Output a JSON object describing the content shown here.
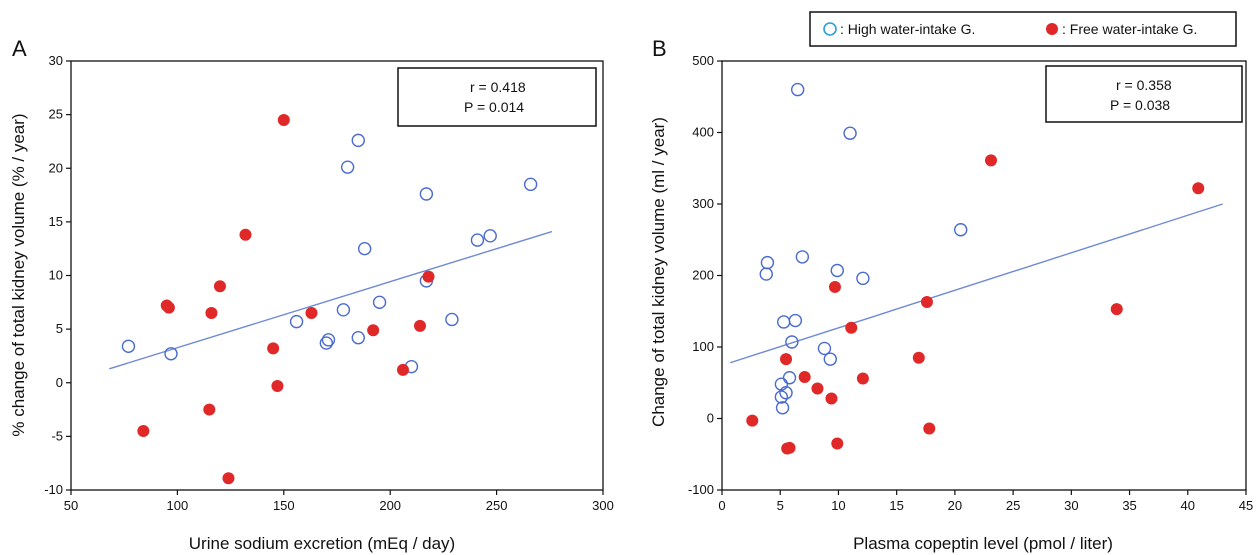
{
  "legend": {
    "items": [
      {
        "marker": "open",
        "label": ": High water-intake G."
      },
      {
        "marker": "filled",
        "label": ": Free water-intake G."
      }
    ]
  },
  "colors": {
    "high_group": "#4a6bd0",
    "free_group": "#e02828",
    "trendline": "#6f8ad6",
    "axis": "#111111"
  },
  "chart_data": [
    {
      "type": "scatter",
      "panel_label": "A",
      "xlabel": "Urine sodium excretion (mEq / day)",
      "ylabel": "% change of total kidney volume (% / year)",
      "xlim": [
        50,
        300
      ],
      "ylim": [
        -10,
        30
      ],
      "xticks": [
        50,
        100,
        150,
        200,
        250,
        300
      ],
      "yticks": [
        -10,
        -5,
        0,
        5,
        10,
        15,
        20,
        25,
        30
      ],
      "stats": {
        "r": "r = 0.418",
        "p": "P = 0.014"
      },
      "trendline": {
        "x": [
          68,
          276
        ],
        "y": [
          1.3,
          14.1
        ]
      },
      "series": [
        {
          "name": ": High water-intake G.",
          "marker": "open",
          "points": [
            [
              77,
              3.4
            ],
            [
              97,
              2.7
            ],
            [
              156,
              5.7
            ],
            [
              170,
              3.7
            ],
            [
              171,
              4.0
            ],
            [
              178,
              6.8
            ],
            [
              180,
              20.1
            ],
            [
              185,
              22.6
            ],
            [
              185,
              4.2
            ],
            [
              188,
              12.5
            ],
            [
              195,
              7.5
            ],
            [
              210,
              1.5
            ],
            [
              217,
              17.6
            ],
            [
              217,
              9.5
            ],
            [
              229,
              5.9
            ],
            [
              241,
              13.3
            ],
            [
              247,
              13.7
            ],
            [
              266,
              18.5
            ]
          ]
        },
        {
          "name": ": Free water-intake G.",
          "marker": "filled",
          "points": [
            [
              84,
              -4.5
            ],
            [
              95,
              7.2
            ],
            [
              96,
              7.0
            ],
            [
              115,
              -2.5
            ],
            [
              116,
              6.5
            ],
            [
              120,
              9.0
            ],
            [
              124,
              -8.9
            ],
            [
              132,
              13.8
            ],
            [
              145,
              3.2
            ],
            [
              147,
              -0.3
            ],
            [
              150,
              24.5
            ],
            [
              163,
              6.5
            ],
            [
              192,
              4.9
            ],
            [
              206,
              1.2
            ],
            [
              214,
              5.3
            ],
            [
              218,
              9.9
            ]
          ]
        }
      ]
    },
    {
      "type": "scatter",
      "panel_label": "B",
      "xlabel": "Plasma copeptin level (pmol / liter)",
      "ylabel": "Change of total kidney volume (ml / year)",
      "xlim": [
        0,
        45
      ],
      "ylim": [
        -100,
        500
      ],
      "xticks": [
        0,
        5,
        10,
        15,
        20,
        25,
        30,
        35,
        40,
        45
      ],
      "yticks": [
        -100,
        0,
        100,
        200,
        300,
        400,
        500
      ],
      "stats": {
        "r": "r = 0.358",
        "p": "P = 0.038"
      },
      "trendline": {
        "x": [
          0.7,
          43
        ],
        "y": [
          78,
          300
        ]
      },
      "series": [
        {
          "name": ": High water-intake G.",
          "marker": "open",
          "points": [
            [
              3.8,
              202
            ],
            [
              3.9,
              218
            ],
            [
              5.1,
              48
            ],
            [
              5.1,
              30
            ],
            [
              5.2,
              15
            ],
            [
              5.3,
              135
            ],
            [
              5.5,
              36
            ],
            [
              5.8,
              57
            ],
            [
              6.0,
              107
            ],
            [
              6.3,
              137
            ],
            [
              6.5,
              460
            ],
            [
              6.9,
              226
            ],
            [
              8.8,
              98
            ],
            [
              9.3,
              83
            ],
            [
              9.9,
              207
            ],
            [
              11.0,
              399
            ],
            [
              12.1,
              196
            ],
            [
              20.5,
              264
            ]
          ]
        },
        {
          "name": ": Free water-intake G.",
          "marker": "filled",
          "points": [
            [
              2.6,
              -3
            ],
            [
              5.5,
              83
            ],
            [
              5.6,
              -42
            ],
            [
              5.8,
              -41
            ],
            [
              7.1,
              58
            ],
            [
              8.2,
              42
            ],
            [
              9.4,
              28
            ],
            [
              9.7,
              184
            ],
            [
              9.9,
              -35
            ],
            [
              11.1,
              127
            ],
            [
              12.1,
              56
            ],
            [
              16.9,
              85
            ],
            [
              17.6,
              163
            ],
            [
              17.8,
              -14
            ],
            [
              23.1,
              361
            ],
            [
              33.9,
              153
            ],
            [
              40.9,
              322
            ]
          ]
        }
      ]
    }
  ]
}
